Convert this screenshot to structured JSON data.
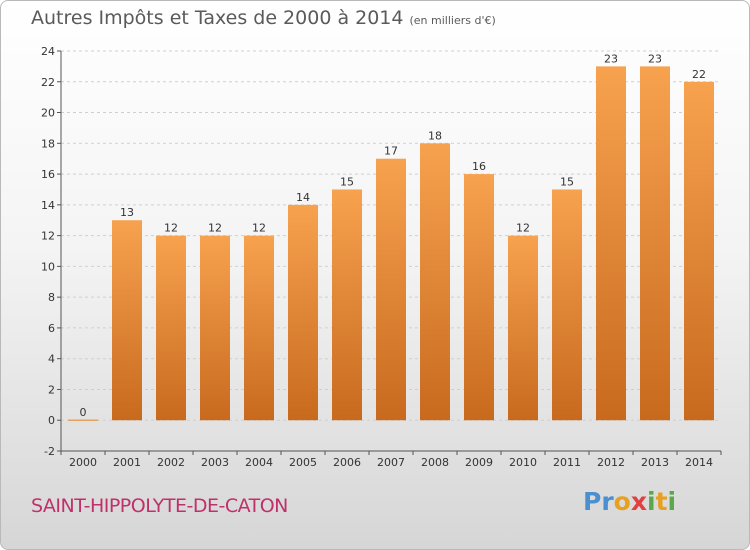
{
  "title": "Autres Impôts et Taxes de 2000 à 2014",
  "unit_note": "(en milliers d'€)",
  "place_name": "SAINT-HIPPOLYTE-DE-CATON",
  "logo": {
    "letters": [
      "P",
      "r",
      "o",
      "x",
      "i",
      "t",
      "i"
    ],
    "colors": [
      "#4b8fd0",
      "#4b8fd0",
      "#e8a020",
      "#e04040",
      "#5aa84a",
      "#e8a020",
      "#5aa84a"
    ]
  },
  "colors": {
    "bar_top": "#f7a24f",
    "bar_bottom": "#c86a1e",
    "axis": "#555555",
    "grid": "#cfcfcf",
    "zero_line": "#e8a060"
  },
  "chart_data": {
    "type": "bar",
    "categories": [
      "2000",
      "2001",
      "2002",
      "2003",
      "2004",
      "2005",
      "2006",
      "2007",
      "2008",
      "2009",
      "2010",
      "2011",
      "2012",
      "2013",
      "2014"
    ],
    "values": [
      0,
      13,
      12,
      12,
      12,
      14,
      15,
      17,
      18,
      16,
      12,
      15,
      23,
      23,
      22
    ],
    "data_labels": [
      "0",
      "13",
      "12",
      "12",
      "12",
      "14",
      "15",
      "17",
      "18",
      "16",
      "12",
      "15",
      "23",
      "23",
      "22"
    ],
    "yticks": [
      "-2",
      "0",
      "2",
      "4",
      "6",
      "8",
      "10",
      "12",
      "14",
      "16",
      "18",
      "20",
      "22",
      "24"
    ],
    "ylim": [
      -2,
      24
    ],
    "grid": "horizontal dashed",
    "legend": "none"
  }
}
